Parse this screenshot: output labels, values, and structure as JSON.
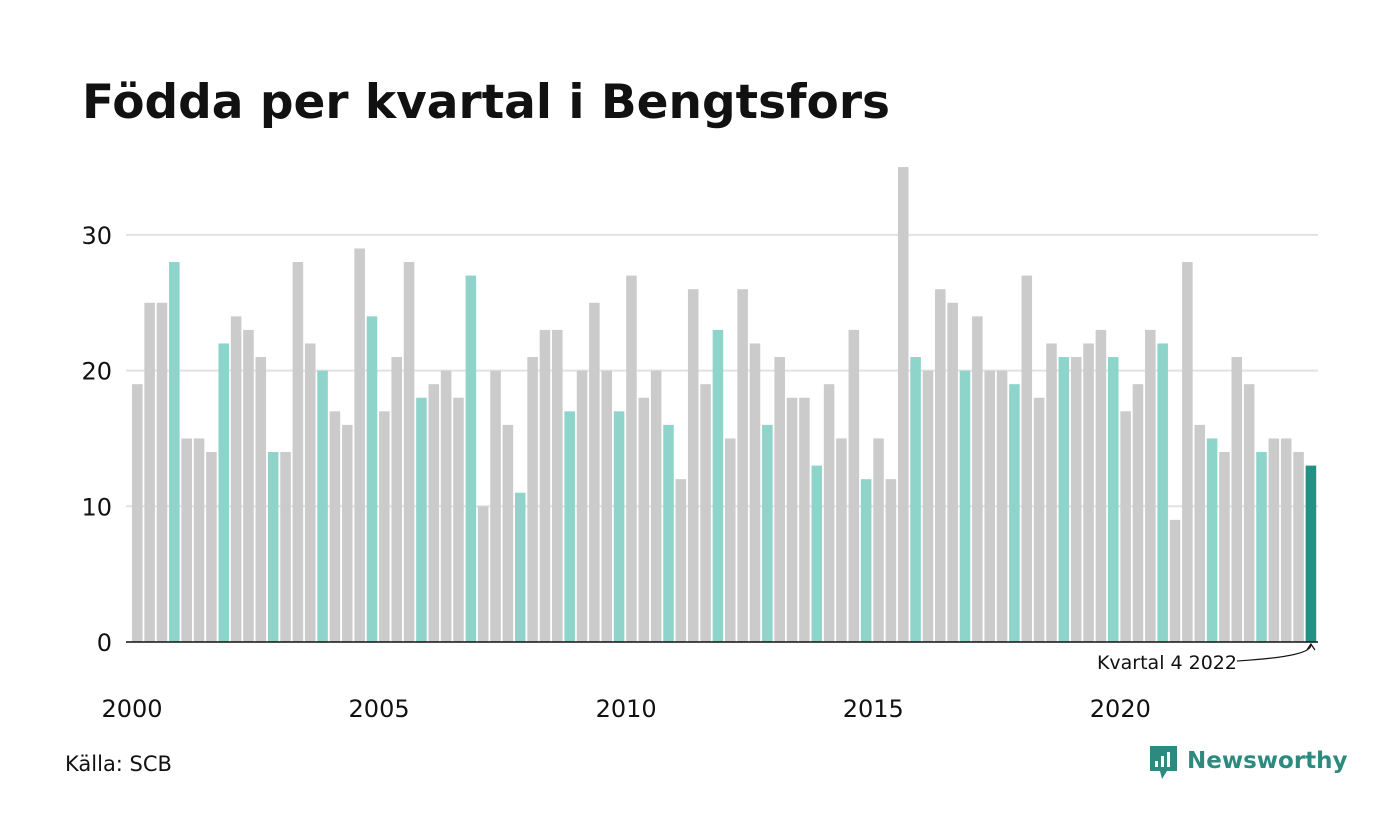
{
  "chart_data": {
    "type": "bar",
    "title": "Födda per kvartal i Bengtsfors",
    "xlabel": "",
    "ylabel": "",
    "ylim": [
      0,
      35
    ],
    "y_ticks": [
      0,
      10,
      20,
      30
    ],
    "x_tick_labels": [
      "2000",
      "2005",
      "2010",
      "2015",
      "2020"
    ],
    "grid": "horizontal",
    "values": [
      19,
      25,
      25,
      28,
      15,
      15,
      14,
      22,
      24,
      23,
      21,
      14,
      14,
      28,
      22,
      20,
      17,
      16,
      29,
      24,
      17,
      21,
      28,
      18,
      19,
      20,
      18,
      27,
      10,
      20,
      16,
      11,
      21,
      23,
      23,
      17,
      20,
      25,
      20,
      17,
      27,
      18,
      20,
      16,
      12,
      26,
      19,
      23,
      15,
      26,
      22,
      16,
      21,
      18,
      18,
      13,
      19,
      15,
      23,
      12,
      15,
      12,
      35,
      21,
      20,
      26,
      25,
      20,
      24,
      20,
      20,
      19,
      27,
      18,
      22,
      21,
      21,
      22,
      23,
      21,
      17,
      19,
      23,
      22,
      9,
      28,
      16,
      15,
      14,
      21,
      19,
      14,
      15,
      15,
      14,
      13
    ],
    "highlighted_quarter": 4,
    "annotation": "Kvartal 4 2022",
    "source": "Källa: SCB",
    "brand": "Newsworthy",
    "colors": {
      "bar": "#cbcbcb",
      "highlight_quarter": "#8fd4ca",
      "latest": "#1f9283",
      "axis": "#111111",
      "grid": "#e2e2e2",
      "brand": "#2e8a7e"
    }
  }
}
